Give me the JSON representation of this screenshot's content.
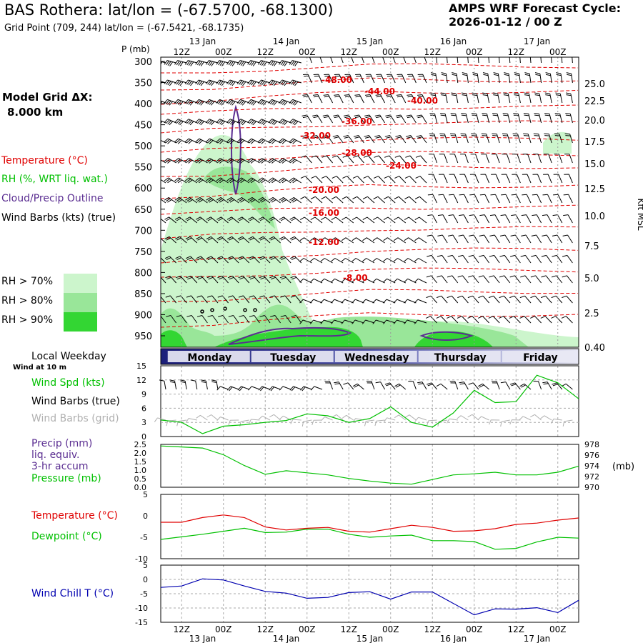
{
  "header": {
    "title": "BAS Rothera:  lat/lon = (-67.5700, -68.1300)",
    "subtitle": "Grid Point (709, 244) lat/lon = (-67.5421, -68.1735)",
    "cycle_label": "AMPS WRF Forecast Cycle:",
    "cycle_value": "2026-01-12 / 00  Z",
    "grid_label": "Model Grid ΔX:",
    "grid_value": "8.000 km"
  },
  "legend": {
    "temperature": "Temperature (°C)",
    "rh": "RH (%, WRT liq. wat.)",
    "cloud": "Cloud/Precip Outline",
    "wind_barbs": "Wind Barbs (kts) (true)",
    "rh_levels": [
      "RH > 70%",
      "RH > 80%",
      "RH > 90%"
    ],
    "local_weekday": "Local Weekday",
    "wind_at_10m": "Wind at 10 m",
    "wind_spd": "Wind Spd (kts)",
    "wind_barbs_true": "Wind Barbs (true)",
    "wind_barbs_grid": "Wind Barbs (grid)",
    "precip": "Precip (mm)",
    "liq_equiv": "liq. equiv.",
    "accum": "3-hr accum",
    "pressure": "Pressure (mb)",
    "temp2": "Temperature (°C)",
    "dewpoint": "Dewpoint (°C)",
    "windchill": "Wind Chill T (°C)"
  },
  "colors": {
    "temperature": "#e00000",
    "rh70": "#ccf5cc",
    "rh80": "#99e699",
    "rh90": "#33d633",
    "cloud": "#5a2d91",
    "wind_spd": "#00c000",
    "grid_barbs": "#b0b0b0",
    "windchill": "#0000b0",
    "day_band": "#1c1f7a"
  },
  "chart_data": [
    {
      "type": "heatmap",
      "name": "vertical cross-section",
      "ylabel_left": "P (mb)",
      "ylabel_right": "Kft MSL",
      "pressure_ticks": [
        300,
        350,
        400,
        450,
        500,
        550,
        600,
        650,
        700,
        750,
        800,
        850,
        900,
        950
      ],
      "kft_ticks": [
        "25.0",
        "22.5",
        "20.0",
        "17.5",
        "15.0",
        "12.5",
        "10.0",
        "7.5",
        "5.0",
        "2.5",
        "0.40"
      ],
      "time_ticks_top": [
        "12Z",
        "00Z",
        "12Z",
        "00Z",
        "12Z",
        "00Z",
        "12Z",
        "00Z",
        "12Z",
        "00Z"
      ],
      "date_ticks_top": [
        "13 Jan",
        "14 Jan",
        "15 Jan",
        "16 Jan",
        "17 Jan"
      ],
      "temperature_labels": [
        "-48.00",
        "-44.00",
        "-40.00",
        "-36.00",
        "-32.00",
        "-28.00",
        "-24.00",
        "-20.00",
        "-16.00",
        "-12.00",
        "-8.00"
      ],
      "x_range_hours": [
        0,
        120
      ]
    },
    {
      "type": "table",
      "name": "weekday band",
      "days": [
        "Monday",
        "Tuesday",
        "Wednesday",
        "Thursday",
        "Friday"
      ]
    },
    {
      "type": "line",
      "name": "wind speed",
      "ylim": [
        0,
        15
      ],
      "y_ticks": [
        "15",
        "12",
        "9",
        "6",
        "3",
        "0"
      ],
      "x_hours": [
        0,
        6,
        12,
        18,
        24,
        30,
        36,
        42,
        48,
        54,
        60,
        66,
        72,
        78,
        84,
        90,
        96,
        102,
        108,
        114,
        120
      ],
      "series": [
        {
          "name": "Wind Spd (kts)",
          "values": [
            3.5,
            3.0,
            0.6,
            2.2,
            2.5,
            3.0,
            3.4,
            4.8,
            4.4,
            3.0,
            3.8,
            6.3,
            3.0,
            2.0,
            5.0,
            9.8,
            7.2,
            7.4,
            13.0,
            11.4,
            8.0
          ]
        }
      ]
    },
    {
      "type": "line",
      "name": "precip and pressure",
      "left_ticks": [
        "2.5",
        "2.0",
        "1.5",
        "1.0",
        "0.5",
        "0.0"
      ],
      "right_ticks": [
        "978",
        "976",
        "974",
        "972",
        "970"
      ],
      "right_label": "(mb)",
      "x_hours": [
        0,
        6,
        12,
        18,
        24,
        30,
        36,
        42,
        48,
        54,
        60,
        66,
        72,
        78,
        84,
        90,
        96,
        102,
        108,
        114,
        120
      ],
      "series": [
        {
          "name": "Pressure (mb)",
          "values": [
            978.0,
            977.8,
            977.6,
            976.3,
            974.2,
            972.5,
            973.2,
            972.8,
            972.4,
            971.7,
            971.2,
            970.8,
            970.6,
            971.5,
            972.4,
            972.6,
            972.9,
            972.4,
            972.4,
            972.9,
            974.1
          ]
        }
      ]
    },
    {
      "type": "line",
      "name": "temperature and dewpoint",
      "ylim": [
        -10,
        5
      ],
      "y_ticks": [
        "5",
        "0",
        "-5",
        "-10"
      ],
      "x_hours": [
        0,
        6,
        12,
        18,
        24,
        30,
        36,
        42,
        48,
        54,
        60,
        66,
        72,
        78,
        84,
        90,
        96,
        102,
        108,
        114,
        120
      ],
      "series": [
        {
          "name": "Temperature (°C)",
          "values": [
            -1.5,
            -1.5,
            -0.4,
            0.2,
            -0.4,
            -2.6,
            -3.3,
            -2.9,
            -2.7,
            -3.6,
            -3.8,
            -3.0,
            -2.2,
            -2.7,
            -3.6,
            -3.5,
            -3.0,
            -2.0,
            -1.7,
            -1.0,
            -0.5
          ]
        },
        {
          "name": "Dewpoint (°C)",
          "values": [
            -5.5,
            -4.9,
            -4.3,
            -3.6,
            -2.9,
            -3.9,
            -3.8,
            -3.1,
            -3.1,
            -4.3,
            -5.0,
            -4.7,
            -4.5,
            -5.8,
            -5.8,
            -6.0,
            -7.8,
            -7.6,
            -6.1,
            -5.0,
            -5.2
          ]
        }
      ]
    },
    {
      "type": "line",
      "name": "wind chill",
      "ylim": [
        -15,
        5
      ],
      "y_ticks": [
        "5",
        "0",
        "-5",
        "-10",
        "-15"
      ],
      "x_hours": [
        0,
        6,
        12,
        18,
        24,
        30,
        36,
        42,
        48,
        54,
        60,
        66,
        72,
        78,
        84,
        90,
        96,
        102,
        108,
        114,
        120
      ],
      "series": [
        {
          "name": "Wind Chill T (°C)",
          "values": [
            -2.8,
            -2.3,
            0.2,
            -0.2,
            -2.3,
            -4.2,
            -4.8,
            -6.6,
            -6.3,
            -4.6,
            -4.3,
            -6.9,
            -4.4,
            -4.4,
            -8.4,
            -12.4,
            -10.3,
            -10.4,
            -9.9,
            -11.6,
            -7.3
          ]
        }
      ]
    }
  ],
  "bottom_axis": {
    "time_ticks": [
      "12Z",
      "00Z",
      "12Z",
      "00Z",
      "12Z",
      "00Z",
      "12Z",
      "00Z",
      "12Z",
      "00Z"
    ],
    "date_ticks": [
      "13 Jan",
      "14 Jan",
      "15 Jan",
      "16 Jan",
      "17 Jan"
    ]
  }
}
